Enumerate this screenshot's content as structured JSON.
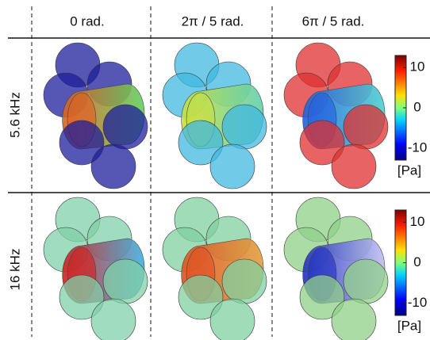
{
  "columns": [
    "0 rad.",
    "2π / 5 rad.",
    "6π / 5 rad."
  ],
  "rows": [
    "5.6 kHz",
    "16 kHz"
  ],
  "colorbars": [
    {
      "ticks": [
        10,
        0,
        -10
      ],
      "lim": [
        -13,
        13
      ],
      "unit": "[Pa]"
    },
    {
      "ticks": [
        10,
        0,
        -10
      ],
      "lim": [
        -13,
        13
      ],
      "unit": "[Pa]"
    }
  ]
}
